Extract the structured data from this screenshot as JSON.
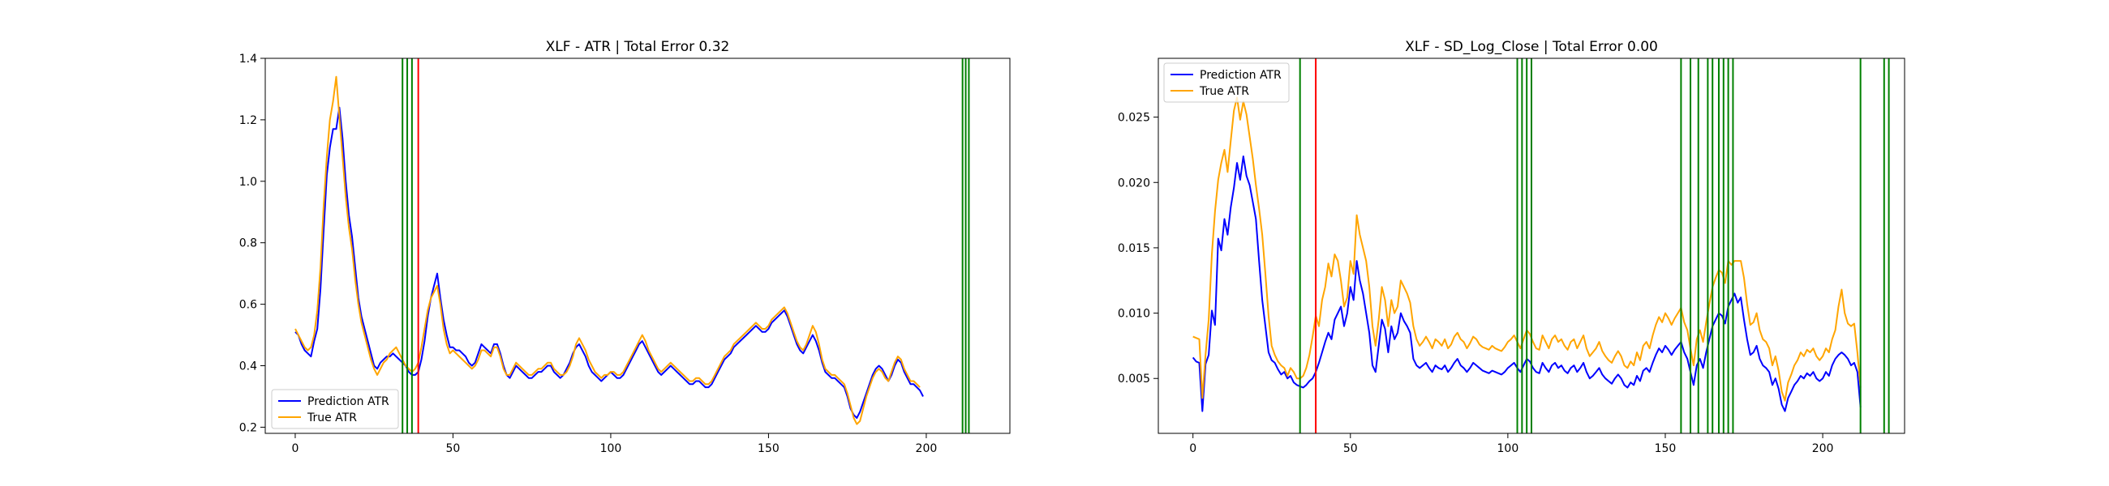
{
  "figure": {
    "background": "#ffffff"
  },
  "chart_data": [
    {
      "type": "line",
      "title": "XLF - ATR | Total Error 0.32",
      "xlabel": "",
      "ylabel": "",
      "xlim": [
        -9.5,
        226.5
      ],
      "ylim": [
        0.18,
        1.4
      ],
      "xticks": [
        0,
        50,
        100,
        150,
        200
      ],
      "yticks": [
        0.2,
        0.4,
        0.6,
        0.8,
        1.0,
        1.2,
        1.4
      ],
      "ytick_labels": [
        "0.2",
        "0.4",
        "0.6",
        "0.8",
        "1.0",
        "1.2",
        "1.4"
      ],
      "grid": false,
      "legend": {
        "placement": "lower-left"
      },
      "series": [
        {
          "name": "Prediction ATR",
          "color": "#0000ff",
          "x_start": 0,
          "values": [
            0.51,
            0.5,
            0.47,
            0.45,
            0.44,
            0.43,
            0.48,
            0.52,
            0.65,
            0.84,
            1.02,
            1.11,
            1.17,
            1.17,
            1.24,
            1.14,
            1.0,
            0.89,
            0.82,
            0.72,
            0.62,
            0.56,
            0.52,
            0.48,
            0.44,
            0.4,
            0.39,
            0.41,
            0.42,
            0.43,
            0.43,
            0.44,
            0.43,
            0.42,
            0.41,
            0.4,
            0.38,
            0.37,
            0.37,
            0.38,
            0.42,
            0.48,
            0.56,
            0.62,
            0.66,
            0.7,
            0.62,
            0.55,
            0.5,
            0.46,
            0.46,
            0.45,
            0.45,
            0.44,
            0.43,
            0.41,
            0.4,
            0.41,
            0.44,
            0.47,
            0.46,
            0.45,
            0.44,
            0.47,
            0.47,
            0.44,
            0.4,
            0.37,
            0.36,
            0.38,
            0.4,
            0.39,
            0.38,
            0.37,
            0.36,
            0.36,
            0.37,
            0.38,
            0.38,
            0.39,
            0.4,
            0.4,
            0.38,
            0.37,
            0.36,
            0.37,
            0.39,
            0.41,
            0.44,
            0.46,
            0.47,
            0.45,
            0.43,
            0.4,
            0.38,
            0.37,
            0.36,
            0.35,
            0.36,
            0.37,
            0.38,
            0.37,
            0.36,
            0.36,
            0.37,
            0.39,
            0.41,
            0.43,
            0.45,
            0.47,
            0.48,
            0.46,
            0.44,
            0.42,
            0.4,
            0.38,
            0.37,
            0.38,
            0.39,
            0.4,
            0.39,
            0.38,
            0.37,
            0.36,
            0.35,
            0.34,
            0.34,
            0.35,
            0.35,
            0.34,
            0.33,
            0.33,
            0.34,
            0.36,
            0.38,
            0.4,
            0.42,
            0.43,
            0.44,
            0.46,
            0.47,
            0.48,
            0.49,
            0.5,
            0.51,
            0.52,
            0.53,
            0.52,
            0.51,
            0.51,
            0.52,
            0.54,
            0.55,
            0.56,
            0.57,
            0.58,
            0.56,
            0.53,
            0.5,
            0.47,
            0.45,
            0.44,
            0.46,
            0.48,
            0.5,
            0.48,
            0.45,
            0.41,
            0.38,
            0.37,
            0.36,
            0.36,
            0.35,
            0.34,
            0.33,
            0.3,
            0.26,
            0.24,
            0.23,
            0.25,
            0.28,
            0.31,
            0.34,
            0.37,
            0.39,
            0.4,
            0.39,
            0.37,
            0.35,
            0.37,
            0.4,
            0.42,
            0.41,
            0.38,
            0.36,
            0.34,
            0.34,
            0.33,
            0.32,
            0.3
          ]
        },
        {
          "name": "True ATR",
          "color": "#ffa500",
          "x_start": 0,
          "values": [
            0.52,
            0.5,
            0.48,
            0.46,
            0.45,
            0.46,
            0.5,
            0.58,
            0.72,
            0.92,
            1.08,
            1.2,
            1.26,
            1.34,
            1.21,
            1.08,
            0.95,
            0.85,
            0.78,
            0.68,
            0.6,
            0.54,
            0.5,
            0.46,
            0.42,
            0.39,
            0.37,
            0.39,
            0.41,
            0.42,
            0.44,
            0.45,
            0.46,
            0.44,
            0.42,
            0.4,
            0.39,
            0.38,
            0.39,
            0.41,
            0.46,
            0.52,
            0.58,
            0.62,
            0.64,
            0.66,
            0.6,
            0.52,
            0.47,
            0.44,
            0.45,
            0.44,
            0.43,
            0.42,
            0.41,
            0.4,
            0.39,
            0.4,
            0.42,
            0.45,
            0.45,
            0.44,
            0.43,
            0.46,
            0.46,
            0.43,
            0.39,
            0.37,
            0.37,
            0.39,
            0.41,
            0.4,
            0.39,
            0.38,
            0.37,
            0.37,
            0.38,
            0.39,
            0.39,
            0.4,
            0.41,
            0.41,
            0.39,
            0.38,
            0.37,
            0.37,
            0.38,
            0.4,
            0.43,
            0.47,
            0.49,
            0.47,
            0.45,
            0.42,
            0.4,
            0.38,
            0.37,
            0.36,
            0.37,
            0.37,
            0.38,
            0.38,
            0.37,
            0.37,
            0.38,
            0.4,
            0.42,
            0.44,
            0.46,
            0.48,
            0.5,
            0.48,
            0.45,
            0.43,
            0.41,
            0.39,
            0.38,
            0.39,
            0.4,
            0.41,
            0.4,
            0.39,
            0.38,
            0.37,
            0.36,
            0.35,
            0.35,
            0.36,
            0.36,
            0.35,
            0.34,
            0.34,
            0.35,
            0.37,
            0.39,
            0.41,
            0.43,
            0.44,
            0.45,
            0.47,
            0.48,
            0.49,
            0.5,
            0.51,
            0.52,
            0.53,
            0.54,
            0.53,
            0.52,
            0.52,
            0.53,
            0.55,
            0.56,
            0.57,
            0.58,
            0.59,
            0.57,
            0.54,
            0.51,
            0.48,
            0.46,
            0.45,
            0.47,
            0.5,
            0.53,
            0.51,
            0.47,
            0.42,
            0.39,
            0.38,
            0.37,
            0.37,
            0.36,
            0.35,
            0.34,
            0.31,
            0.27,
            0.23,
            0.21,
            0.22,
            0.26,
            0.3,
            0.33,
            0.36,
            0.38,
            0.39,
            0.38,
            0.36,
            0.35,
            0.38,
            0.41,
            0.43,
            0.42,
            0.39,
            0.37,
            0.35,
            0.35,
            0.34,
            0.33
          ]
        }
      ],
      "vlines": [
        {
          "x": 34,
          "color": "#008000"
        },
        {
          "x": 35.5,
          "color": "#008000"
        },
        {
          "x": 37,
          "color": "#008000"
        },
        {
          "x": 39,
          "color": "#ff0000"
        },
        {
          "x": 211.5,
          "color": "#008000"
        },
        {
          "x": 212.5,
          "color": "#008000"
        },
        {
          "x": 213.5,
          "color": "#008000"
        }
      ]
    },
    {
      "type": "line",
      "title": "XLF - SD_Log_Close | Total Error 0.00",
      "xlabel": "",
      "ylabel": "",
      "xlim": [
        -11,
        226
      ],
      "ylim": [
        0.0008,
        0.0295
      ],
      "xticks": [
        0,
        50,
        100,
        150,
        200
      ],
      "yticks": [
        0.005,
        0.01,
        0.015,
        0.02,
        0.025
      ],
      "ytick_labels": [
        "0.005",
        "0.010",
        "0.015",
        "0.020",
        "0.025"
      ],
      "grid": false,
      "legend": {
        "placement": "upper-left"
      },
      "series": [
        {
          "name": "Prediction ATR",
          "color": "#0000ff",
          "x_start": 0,
          "values": [
            0.0066,
            0.0063,
            0.0062,
            0.0025,
            0.0061,
            0.0068,
            0.0102,
            0.0091,
            0.0157,
            0.0148,
            0.0172,
            0.016,
            0.0181,
            0.0196,
            0.0215,
            0.0202,
            0.022,
            0.0205,
            0.0198,
            0.0185,
            0.0172,
            0.014,
            0.011,
            0.009,
            0.007,
            0.0064,
            0.0062,
            0.0057,
            0.0053,
            0.0055,
            0.005,
            0.0052,
            0.0047,
            0.0045,
            0.0044,
            0.0043,
            0.0045,
            0.0048,
            0.005,
            0.0055,
            0.0062,
            0.007,
            0.0078,
            0.0085,
            0.008,
            0.0095,
            0.01,
            0.0105,
            0.009,
            0.01,
            0.012,
            0.011,
            0.014,
            0.0125,
            0.0115,
            0.01,
            0.0085,
            0.006,
            0.0055,
            0.0075,
            0.0095,
            0.0088,
            0.007,
            0.009,
            0.008,
            0.0085,
            0.01,
            0.0094,
            0.009,
            0.0085,
            0.0065,
            0.006,
            0.0058,
            0.006,
            0.0062,
            0.0058,
            0.0055,
            0.006,
            0.0058,
            0.0057,
            0.006,
            0.0055,
            0.0058,
            0.0062,
            0.0065,
            0.006,
            0.0058,
            0.0055,
            0.0058,
            0.0062,
            0.006,
            0.0058,
            0.0056,
            0.0055,
            0.0054,
            0.0056,
            0.0055,
            0.0054,
            0.0053,
            0.0055,
            0.0058,
            0.006,
            0.0062,
            0.0058,
            0.0055,
            0.006,
            0.0065,
            0.0063,
            0.0058,
            0.0055,
            0.0054,
            0.0062,
            0.0058,
            0.0055,
            0.006,
            0.0062,
            0.0058,
            0.006,
            0.0056,
            0.0054,
            0.0058,
            0.006,
            0.0055,
            0.0058,
            0.0062,
            0.0055,
            0.005,
            0.0052,
            0.0055,
            0.0058,
            0.0053,
            0.005,
            0.0048,
            0.0046,
            0.005,
            0.0053,
            0.005,
            0.0045,
            0.0043,
            0.0047,
            0.0045,
            0.0052,
            0.0048,
            0.0056,
            0.0058,
            0.0055,
            0.0062,
            0.0068,
            0.0073,
            0.007,
            0.0075,
            0.0072,
            0.0068,
            0.0072,
            0.0075,
            0.0078,
            0.007,
            0.0065,
            0.0055,
            0.0045,
            0.006,
            0.0065,
            0.0058,
            0.007,
            0.008,
            0.009,
            0.0095,
            0.01,
            0.0098,
            0.0092,
            0.0105,
            0.011,
            0.0115,
            0.0108,
            0.0112,
            0.0095,
            0.008,
            0.0068,
            0.007,
            0.0075,
            0.0065,
            0.006,
            0.0058,
            0.0055,
            0.0045,
            0.005,
            0.0042,
            0.003,
            0.0025,
            0.0035,
            0.004,
            0.0045,
            0.0048,
            0.0052,
            0.005,
            0.0054,
            0.0052,
            0.0055,
            0.005,
            0.0048,
            0.005,
            0.0055,
            0.0052,
            0.006,
            0.0065,
            0.0068,
            0.007,
            0.0068,
            0.0065,
            0.006,
            0.0062,
            0.0055,
            0.0028
          ]
        },
        {
          "name": "True ATR",
          "color": "#ffa500",
          "x_start": 0,
          "values": [
            0.0082,
            0.0081,
            0.008,
            0.0035,
            0.0068,
            0.0095,
            0.0145,
            0.0178,
            0.0202,
            0.0215,
            0.0225,
            0.0208,
            0.0232,
            0.0255,
            0.0265,
            0.0248,
            0.0262,
            0.0252,
            0.0235,
            0.0218,
            0.0198,
            0.018,
            0.016,
            0.013,
            0.0098,
            0.0075,
            0.0068,
            0.0063,
            0.006,
            0.0058,
            0.0052,
            0.0058,
            0.0055,
            0.005,
            0.005,
            0.0052,
            0.0058,
            0.0068,
            0.0082,
            0.0098,
            0.009,
            0.011,
            0.012,
            0.0138,
            0.0128,
            0.0145,
            0.014,
            0.0125,
            0.0105,
            0.0112,
            0.014,
            0.013,
            0.0175,
            0.016,
            0.015,
            0.014,
            0.012,
            0.009,
            0.0075,
            0.0095,
            0.012,
            0.011,
            0.009,
            0.011,
            0.01,
            0.0105,
            0.0125,
            0.012,
            0.0115,
            0.0108,
            0.009,
            0.008,
            0.0075,
            0.0078,
            0.0082,
            0.0078,
            0.0073,
            0.008,
            0.0078,
            0.0075,
            0.008,
            0.0073,
            0.0076,
            0.0082,
            0.0085,
            0.008,
            0.0078,
            0.0073,
            0.0077,
            0.0082,
            0.008,
            0.0076,
            0.0074,
            0.0073,
            0.0072,
            0.0075,
            0.0073,
            0.0072,
            0.0071,
            0.0074,
            0.0078,
            0.008,
            0.0083,
            0.0078,
            0.0073,
            0.008,
            0.0087,
            0.0084,
            0.0078,
            0.0073,
            0.0072,
            0.0083,
            0.0078,
            0.0073,
            0.008,
            0.0083,
            0.0078,
            0.008,
            0.0075,
            0.0072,
            0.0078,
            0.008,
            0.0073,
            0.0078,
            0.0083,
            0.0073,
            0.0067,
            0.007,
            0.0073,
            0.0078,
            0.0071,
            0.0067,
            0.0064,
            0.0062,
            0.0067,
            0.0071,
            0.0067,
            0.006,
            0.0058,
            0.0063,
            0.006,
            0.007,
            0.0064,
            0.0075,
            0.0078,
            0.0073,
            0.0083,
            0.0091,
            0.0097,
            0.0093,
            0.01,
            0.0096,
            0.0091,
            0.0096,
            0.01,
            0.0104,
            0.0093,
            0.0087,
            0.0073,
            0.006,
            0.008,
            0.0087,
            0.0078,
            0.0093,
            0.0107,
            0.012,
            0.0127,
            0.0133,
            0.0131,
            0.0123,
            0.014,
            0.0137,
            0.014,
            0.014,
            0.014,
            0.0127,
            0.0107,
            0.0091,
            0.0093,
            0.01,
            0.0087,
            0.008,
            0.0078,
            0.0073,
            0.006,
            0.0067,
            0.0056,
            0.004,
            0.0033,
            0.0047,
            0.0053,
            0.006,
            0.0064,
            0.007,
            0.0067,
            0.0072,
            0.007,
            0.0073,
            0.0067,
            0.0064,
            0.0067,
            0.0073,
            0.007,
            0.008,
            0.0087,
            0.0105,
            0.0118,
            0.01,
            0.0092,
            0.009,
            0.0092,
            0.007,
            0.0043
          ]
        }
      ],
      "vlines": [
        {
          "x": 34,
          "color": "#008000"
        },
        {
          "x": 39,
          "color": "#ff0000"
        },
        {
          "x": 103,
          "color": "#008000"
        },
        {
          "x": 104.5,
          "color": "#008000"
        },
        {
          "x": 106,
          "color": "#008000"
        },
        {
          "x": 107.5,
          "color": "#008000"
        },
        {
          "x": 155,
          "color": "#008000"
        },
        {
          "x": 158,
          "color": "#008000"
        },
        {
          "x": 160.5,
          "color": "#008000"
        },
        {
          "x": 163.5,
          "color": "#008000"
        },
        {
          "x": 165,
          "color": "#008000"
        },
        {
          "x": 167,
          "color": "#008000"
        },
        {
          "x": 168.5,
          "color": "#008000"
        },
        {
          "x": 170,
          "color": "#008000"
        },
        {
          "x": 171.5,
          "color": "#008000"
        },
        {
          "x": 212,
          "color": "#008000"
        },
        {
          "x": 219.5,
          "color": "#008000"
        },
        {
          "x": 221,
          "color": "#008000"
        }
      ]
    }
  ]
}
